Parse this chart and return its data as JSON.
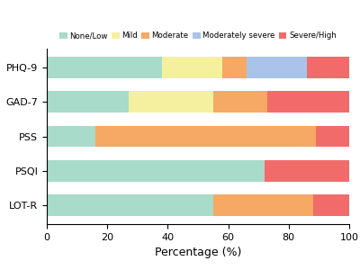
{
  "categories": [
    "PHQ-9",
    "GAD-7",
    "PSS",
    "PSQI",
    "LOT-R"
  ],
  "segments": {
    "None/Low": [
      38,
      27,
      16,
      72,
      55
    ],
    "Mild": [
      20,
      28,
      0,
      0,
      0
    ],
    "Moderate": [
      8,
      18,
      73,
      0,
      33
    ],
    "Moderately severe": [
      20,
      0,
      0,
      0,
      0
    ],
    "Severe/High": [
      14,
      27,
      11,
      28,
      12
    ]
  },
  "colors": {
    "None/Low": "#a8dbc9",
    "Mild": "#f5f0a0",
    "Moderate": "#f5a964",
    "Moderately severe": "#a9c4e8",
    "Severe/High": "#f26b6b"
  },
  "xlabel": "Percentage (%)",
  "xlim": [
    0,
    100
  ],
  "xticks": [
    0,
    20,
    40,
    60,
    80,
    100
  ],
  "background_color": "#ffffff",
  "legend_order": [
    "None/Low",
    "Mild",
    "Moderate",
    "Moderately severe",
    "Severe/High"
  ]
}
